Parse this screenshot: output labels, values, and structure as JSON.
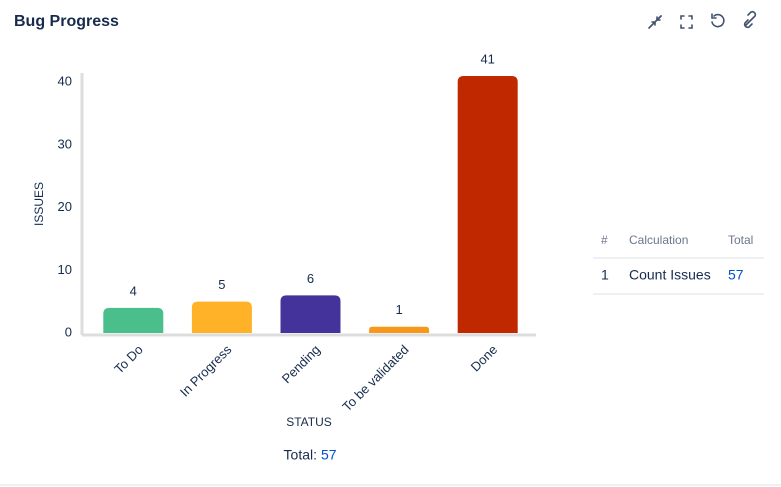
{
  "header": {
    "title": "Bug Progress"
  },
  "chart_data": {
    "type": "bar",
    "categories": [
      "To Do",
      "In Progress",
      "Pending",
      "To be validated",
      "Done"
    ],
    "values": [
      4,
      5,
      6,
      1,
      41
    ],
    "colors": [
      "#4bbf8b",
      "#ffb228",
      "#44339a",
      "#f7981d",
      "#c02800"
    ],
    "ylim": [
      0,
      41
    ],
    "yticks": [
      0,
      10,
      20,
      30,
      40
    ],
    "y_label": "ISSUES",
    "x_label": "STATUS",
    "grid": false
  },
  "total": {
    "label": "Total:",
    "value": 57
  },
  "table": {
    "header": [
      "#",
      "Calculation",
      "Total"
    ],
    "rows": [
      [
        1,
        "Count Issues",
        57
      ]
    ]
  }
}
